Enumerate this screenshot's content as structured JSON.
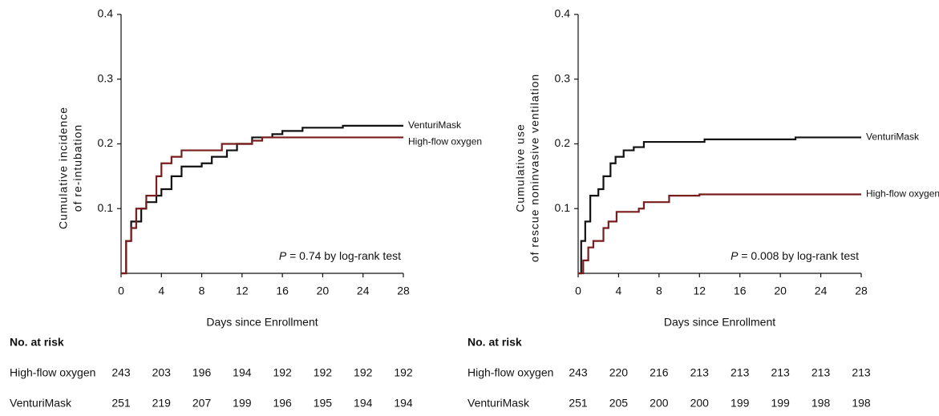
{
  "chart_data": [
    {
      "type": "line",
      "step": true,
      "ylabel": [
        "Cumulative incidence",
        "of re-intubation"
      ],
      "xlabel": "Days since Enrollment",
      "annotation": {
        "italic": "P",
        "text": " = 0.74 by log-rank test"
      },
      "xlim": [
        0,
        28
      ],
      "xticks": [
        0,
        4,
        8,
        12,
        16,
        20,
        24,
        28
      ],
      "ylim": [
        0,
        0.4
      ],
      "yticks": [
        0.1,
        0.2,
        0.3,
        0.4
      ],
      "series": [
        {
          "name": "VenturiMask",
          "color": "#111111",
          "x": [
            0,
            0.5,
            1,
            2,
            2.5,
            3.5,
            4,
            5,
            6,
            8,
            9,
            10.5,
            11.5,
            13,
            15,
            16,
            18,
            22,
            28
          ],
          "values": [
            0,
            0.05,
            0.08,
            0.1,
            0.11,
            0.12,
            0.13,
            0.15,
            0.165,
            0.17,
            0.18,
            0.19,
            0.2,
            0.21,
            0.215,
            0.22,
            0.225,
            0.228,
            0.228
          ]
        },
        {
          "name": "High-flow oxygen",
          "color": "#7a1c1c",
          "x": [
            0,
            0.5,
            1,
            1.5,
            2.5,
            3.5,
            4,
            5,
            6,
            10,
            13,
            14,
            28
          ],
          "values": [
            0,
            0.05,
            0.07,
            0.1,
            0.12,
            0.15,
            0.17,
            0.18,
            0.19,
            0.2,
            0.205,
            0.21,
            0.21
          ]
        }
      ],
      "at_risk": {
        "title": "No. at risk",
        "rows": [
          {
            "name": "High-flow oxygen",
            "values": [
              243,
              203,
              196,
              194,
              192,
              192,
              192,
              192
            ]
          },
          {
            "name": "VenturiMask",
            "values": [
              251,
              219,
              207,
              199,
              196,
              195,
              194,
              194
            ]
          }
        ]
      }
    },
    {
      "type": "line",
      "step": true,
      "ylabel": [
        "Cumulative use",
        "of rescue noninvasive ventilation"
      ],
      "xlabel": "Days since Enrollment",
      "annotation": {
        "italic": "P",
        "text": " = 0.008 by log-rank test"
      },
      "xlim": [
        0,
        28
      ],
      "xticks": [
        0,
        4,
        8,
        12,
        16,
        20,
        24,
        28
      ],
      "ylim": [
        0,
        0.4
      ],
      "yticks": [
        0.1,
        0.2,
        0.3,
        0.4
      ],
      "series": [
        {
          "name": "VenturiMask",
          "color": "#111111",
          "x": [
            0,
            0.3,
            0.7,
            1.2,
            2,
            2.5,
            3.2,
            3.7,
            4.5,
            5.5,
            6.5,
            12.5,
            21.5,
            28
          ],
          "values": [
            0,
            0.05,
            0.08,
            0.12,
            0.13,
            0.15,
            0.17,
            0.18,
            0.19,
            0.195,
            0.203,
            0.207,
            0.21,
            0.21
          ]
        },
        {
          "name": "High-flow oxygen",
          "color": "#7a1c1c",
          "x": [
            0,
            0.5,
            1,
            1.5,
            2.5,
            3,
            3.8,
            6,
            6.5,
            9,
            12,
            28
          ],
          "values": [
            0,
            0.02,
            0.04,
            0.05,
            0.07,
            0.08,
            0.095,
            0.1,
            0.11,
            0.12,
            0.122,
            0.122
          ]
        }
      ],
      "at_risk": {
        "title": "No. at risk",
        "rows": [
          {
            "name": "High-flow oxygen",
            "values": [
              243,
              220,
              216,
              213,
              213,
              213,
              213,
              213
            ]
          },
          {
            "name": "VenturiMask",
            "values": [
              251,
              205,
              200,
              200,
              199,
              199,
              198,
              198
            ]
          }
        ]
      }
    }
  ]
}
